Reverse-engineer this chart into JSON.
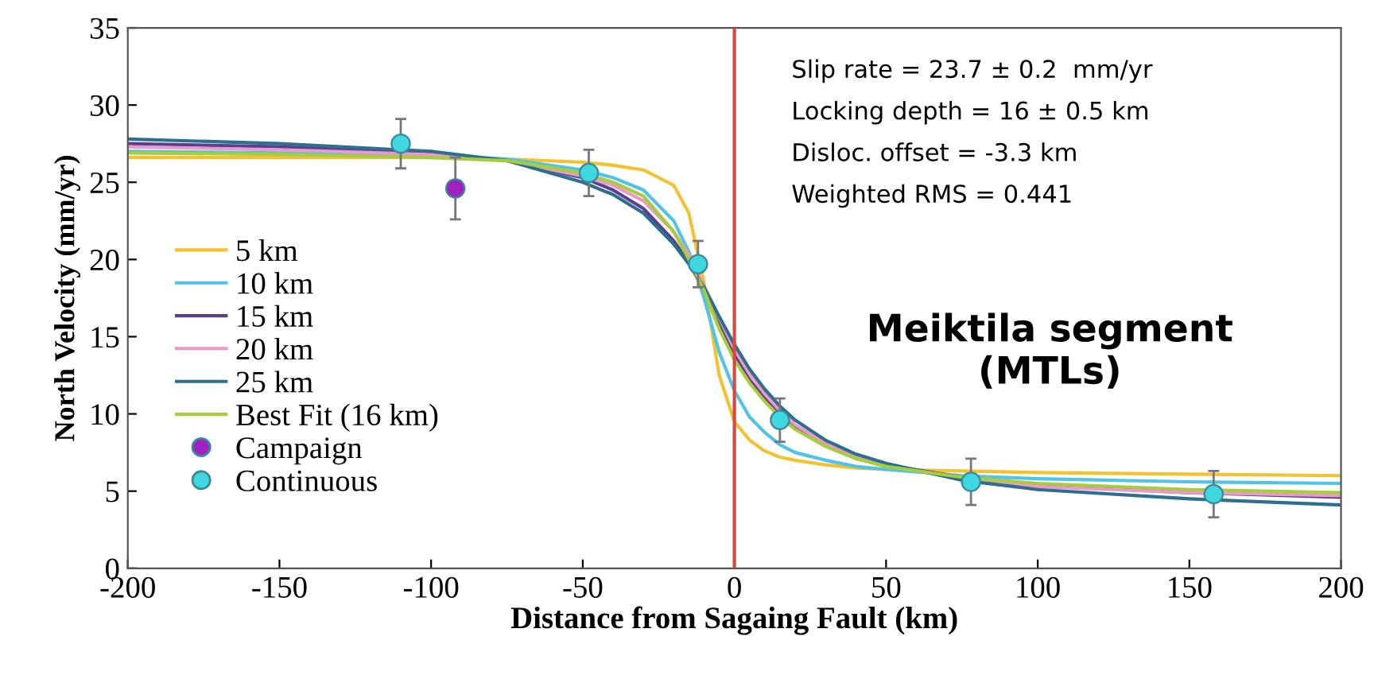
{
  "chart_data": {
    "type": "line",
    "xlabel": "Distance from Sagaing Fault (km)",
    "ylabel": "North Velocity (mm/yr)",
    "x": [
      -200,
      -150,
      -100,
      -75,
      -50,
      -40,
      -30,
      -20,
      -15,
      -10,
      -5,
      0,
      5,
      10,
      15,
      20,
      30,
      40,
      50,
      75,
      100,
      150,
      200
    ],
    "series": [
      {
        "name": "5 km",
        "color": "#f2c230",
        "values": [
          26.6,
          26.6,
          26.6,
          26.5,
          26.3,
          26.1,
          25.8,
          24.8,
          23,
          18.5,
          12.5,
          9.5,
          8.3,
          7.6,
          7.2,
          7.0,
          6.7,
          6.5,
          6.4,
          6.3,
          6.2,
          6.1,
          6.0
        ]
      },
      {
        "name": "10 km",
        "color": "#4fc3e8",
        "values": [
          27.0,
          26.9,
          26.8,
          26.5,
          25.8,
          25.3,
          24.5,
          22.5,
          20.5,
          17.5,
          14,
          11.5,
          9.8,
          8.8,
          8.0,
          7.5,
          7.0,
          6.6,
          6.4,
          6.0,
          5.8,
          5.6,
          5.5
        ]
      },
      {
        "name": "15 km",
        "color": "#5b3f8f",
        "values": [
          27.5,
          27.3,
          26.9,
          26.4,
          25.3,
          24.5,
          23.3,
          21.2,
          19.8,
          18,
          15.8,
          13.8,
          12.2,
          11,
          10,
          9.2,
          8.0,
          7.2,
          6.7,
          5.9,
          5.4,
          4.9,
          4.6
        ]
      },
      {
        "name": "20 km",
        "color": "#e89ac8",
        "values": [
          27.3,
          27.1,
          26.8,
          26.4,
          25.4,
          24.8,
          23.8,
          21.8,
          20.3,
          18.3,
          16.2,
          14.2,
          12.6,
          11.3,
          10.2,
          9.3,
          8.1,
          7.3,
          6.7,
          5.8,
          5.3,
          4.9,
          4.7
        ]
      },
      {
        "name": "25 km",
        "color": "#2e6e8e",
        "values": [
          27.8,
          27.5,
          27.0,
          26.4,
          25.0,
          24.2,
          23.0,
          21.0,
          19.7,
          18.2,
          16.3,
          14.5,
          12.9,
          11.6,
          10.5,
          9.6,
          8.3,
          7.4,
          6.8,
          5.7,
          5.1,
          4.5,
          4.1
        ]
      },
      {
        "name": "Best Fit (16 km)",
        "color": "#a8cc3c",
        "values": [
          26.9,
          26.8,
          26.6,
          26.4,
          25.6,
          25.0,
          24.1,
          21.8,
          20,
          18,
          15.5,
          13.5,
          12,
          10.8,
          9.8,
          9.0,
          7.9,
          7.1,
          6.6,
          5.9,
          5.5,
          5.1,
          4.9
        ]
      },
      {
        "name": "Campaign",
        "type": "scatter",
        "marker": "circle",
        "color": "#a020c0",
        "x": [
          -92
        ],
        "values": [
          24.6
        ],
        "errors": [
          2.0
        ]
      },
      {
        "name": "Continuous",
        "type": "scatter",
        "marker": "circle",
        "color": "#40d8e0",
        "x": [
          -110,
          -48,
          -12,
          15,
          78,
          158
        ],
        "values": [
          27.5,
          25.6,
          19.7,
          9.6,
          5.6,
          4.8
        ],
        "errors": [
          1.6,
          1.5,
          1.5,
          1.4,
          1.5,
          1.5
        ]
      }
    ],
    "marker": "none",
    "xlim": [
      -200,
      200
    ],
    "xticks": [
      -200,
      -150,
      -100,
      -50,
      0,
      50,
      100,
      150,
      200
    ],
    "ylim": [
      0,
      35
    ],
    "yticks": [
      0,
      5,
      10,
      15,
      20,
      25,
      30,
      35
    ],
    "ref_lines": [
      {
        "axis": "x",
        "value": 0,
        "color": "#d9473f"
      }
    ],
    "annotations": [
      "Slip rate = 23.7 ± 0.2  mm/yr",
      "Locking depth = 16 ± 0.5 km",
      "Disloc. offset = -3.3 km",
      "Weighted RMS = 0.441",
      "Meiktila segment\n(MTLs)"
    ],
    "grid": false,
    "legend": "left"
  }
}
